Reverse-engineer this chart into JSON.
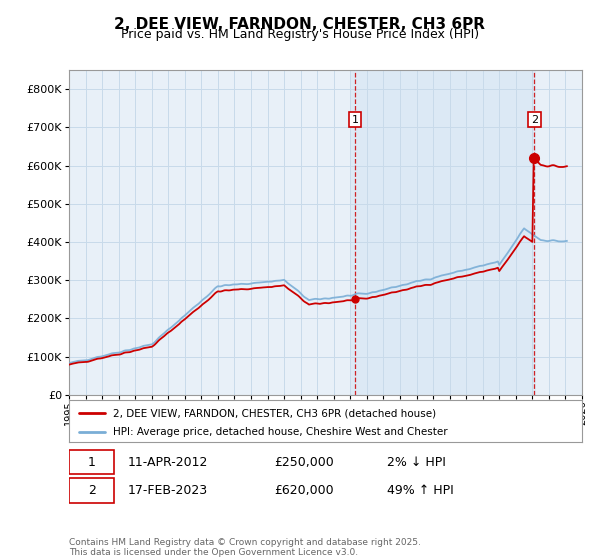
{
  "title": "2, DEE VIEW, FARNDON, CHESTER, CH3 6PR",
  "subtitle": "Price paid vs. HM Land Registry's House Price Index (HPI)",
  "ytick_values": [
    0,
    100000,
    200000,
    300000,
    400000,
    500000,
    600000,
    700000,
    800000
  ],
  "ylim": [
    0,
    850000
  ],
  "sale1": {
    "date_label": "11-APR-2012",
    "price": 250000,
    "pct": "2%",
    "dir": "↓",
    "marker_x": 2012.28
  },
  "sale2": {
    "date_label": "17-FEB-2023",
    "price": 620000,
    "pct": "49%",
    "dir": "↑",
    "marker_x": 2023.12
  },
  "hpi_color": "#7aaed6",
  "price_color": "#cc0000",
  "sale_color": "#cc0000",
  "vline_color": "#cc0000",
  "grid_color": "#c8daea",
  "plot_bg": "#dce9f5",
  "plot_bg2": "#e8f0f8",
  "legend_label_red": "2, DEE VIEW, FARNDON, CHESTER, CH3 6PR (detached house)",
  "legend_label_blue": "HPI: Average price, detached house, Cheshire West and Chester",
  "footer": "Contains HM Land Registry data © Crown copyright and database right 2025.\nThis data is licensed under the Open Government Licence v3.0.",
  "xmin": 1995,
  "xmax": 2026
}
